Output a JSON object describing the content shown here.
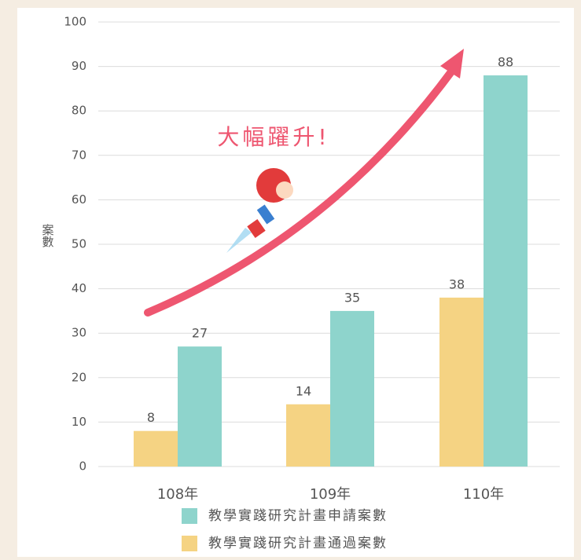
{
  "chart_data": {
    "type": "bar",
    "y_label": "案數",
    "annotation": "大幅躍升!",
    "categories": [
      "108年",
      "109年",
      "110年"
    ],
    "series": [
      {
        "name": "教學實踐研究計畫通過案數",
        "color": "#f5d383",
        "values": [
          8,
          14,
          38
        ]
      },
      {
        "name": "教學實踐研究計畫申請案數",
        "color": "#8ed4cc",
        "values": [
          27,
          35,
          88
        ]
      }
    ],
    "legend_order": [
      1,
      0
    ],
    "ylim": [
      0,
      100
    ],
    "yticks": [
      0,
      10,
      20,
      30,
      40,
      50,
      60,
      70,
      80,
      90,
      100
    ],
    "grid": true
  }
}
